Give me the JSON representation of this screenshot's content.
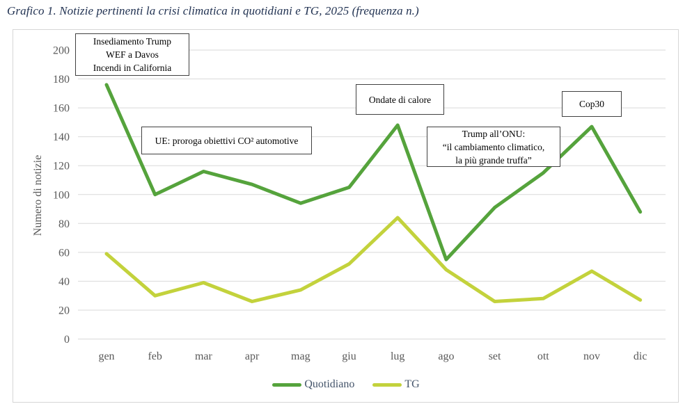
{
  "title": "Grafico 1. Notizie pertinenti la crisi climatica in quotidiani e TG, 2025 (frequenza n.)",
  "chart_data": {
    "type": "line",
    "categories": [
      "gen",
      "feb",
      "mar",
      "apr",
      "mag",
      "giu",
      "lug",
      "ago",
      "set",
      "ott",
      "nov",
      "dic"
    ],
    "series": [
      {
        "name": "Quotidiano",
        "color": "#55A33C",
        "values": [
          176,
          100,
          116,
          107,
          94,
          105,
          148,
          55,
          91,
          115,
          147,
          88
        ]
      },
      {
        "name": "TG",
        "color": "#C3D23C",
        "values": [
          59,
          30,
          39,
          26,
          34,
          52,
          84,
          48,
          26,
          28,
          47,
          27
        ]
      }
    ],
    "title": "Grafico 1. Notizie pertinenti la crisi climatica in quotidiani e TG, 2025 (frequenza n.)",
    "xlabel": "",
    "ylabel": "Numero di notizie",
    "ylim": [
      0,
      200
    ],
    "ytick_step": 20,
    "yticks": [
      0,
      20,
      40,
      60,
      80,
      100,
      120,
      140,
      160,
      180,
      200
    ],
    "grid": true,
    "legend_position": "bottom",
    "annotations": [
      {
        "lines": [
          "Insediamento Trump",
          "WEF a Davos",
          "Incendi in California"
        ]
      },
      {
        "lines": [
          "UE: proroga obiettivi CO² automotive"
        ]
      },
      {
        "lines": [
          "Ondate di calore"
        ]
      },
      {
        "lines": [
          "Trump all’ONU:",
          "“il cambiamento climatico,",
          "la più grande truffa”"
        ]
      },
      {
        "lines": [
          "Cop30"
        ]
      }
    ]
  }
}
